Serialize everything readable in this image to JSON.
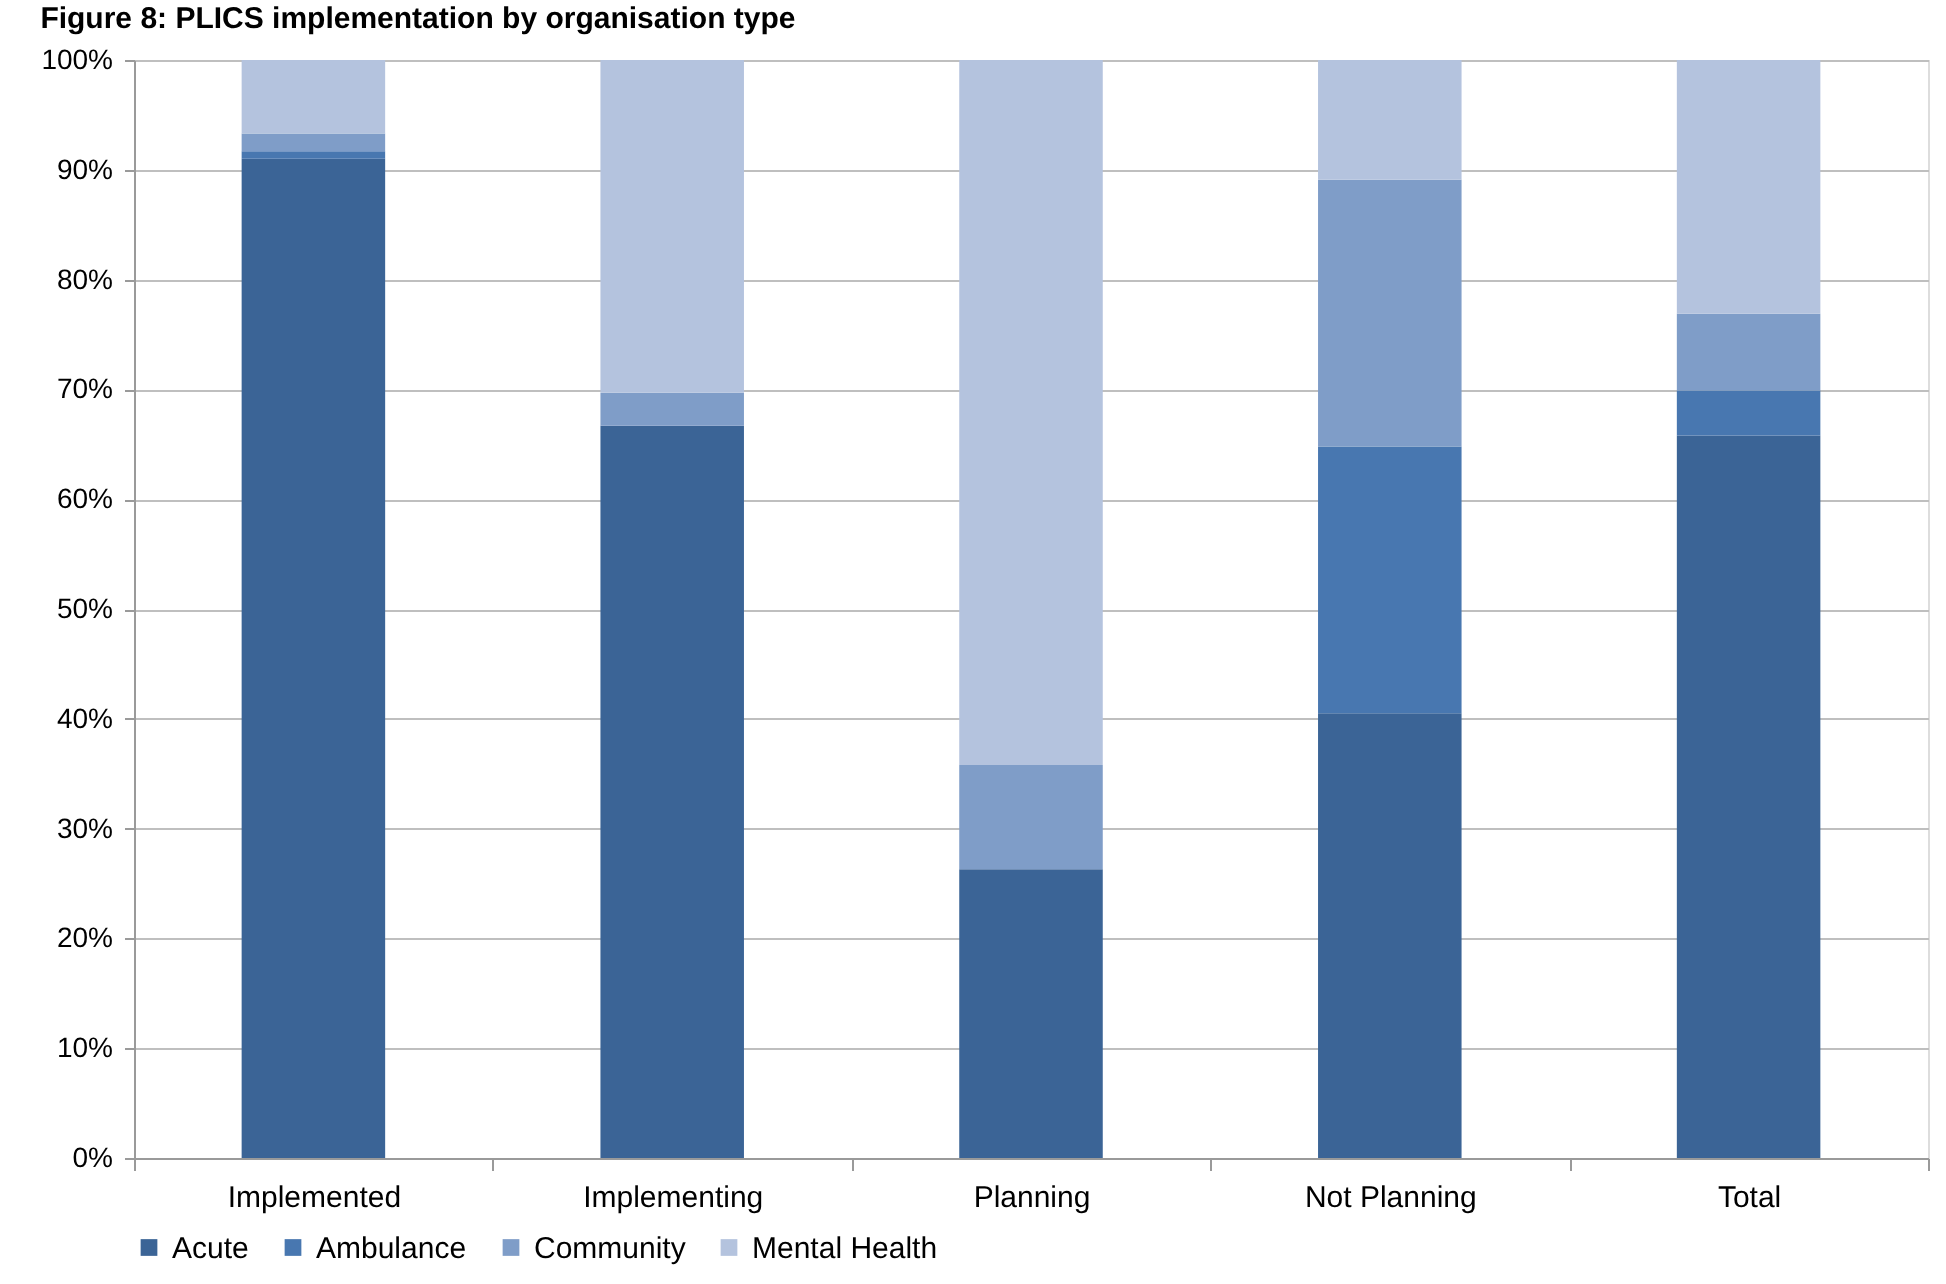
{
  "chart_data": {
    "type": "bar",
    "title": "Figure 8: PLICS implementation by organisation type",
    "categories": [
      "Implemented",
      "Implementing",
      "Planning",
      "Not Planning",
      "Total"
    ],
    "series": [
      {
        "name": "Acute",
        "color": "#3b6496",
        "values": [
          91.0,
          66.7,
          26.3,
          40.5,
          65.8
        ]
      },
      {
        "name": "Ambulance",
        "color": "#4877b0",
        "values": [
          0.7,
          0,
          0,
          24.3,
          4.1
        ]
      },
      {
        "name": "Community",
        "color": "#7f9dc8",
        "values": [
          1.6,
          3.0,
          9.5,
          24.3,
          7.0
        ]
      },
      {
        "name": "Mental Health",
        "color": "#b4c3de",
        "values": [
          6.7,
          30.3,
          64.2,
          10.9,
          23.1
        ]
      }
    ],
    "stacked": true,
    "ylim": [
      0,
      100
    ],
    "yticks": [
      {
        "value": 0,
        "label": "0%"
      },
      {
        "value": 10,
        "label": "10%"
      },
      {
        "value": 20,
        "label": "20%"
      },
      {
        "value": 30,
        "label": "30%"
      },
      {
        "value": 40,
        "label": "40%"
      },
      {
        "value": 50,
        "label": "50%"
      },
      {
        "value": 60,
        "label": "60%"
      },
      {
        "value": 70,
        "label": "70%"
      },
      {
        "value": 80,
        "label": "80%"
      },
      {
        "value": 90,
        "label": "90%"
      },
      {
        "value": 100,
        "label": "100%"
      }
    ],
    "grid": "y",
    "legend": "bottom"
  }
}
